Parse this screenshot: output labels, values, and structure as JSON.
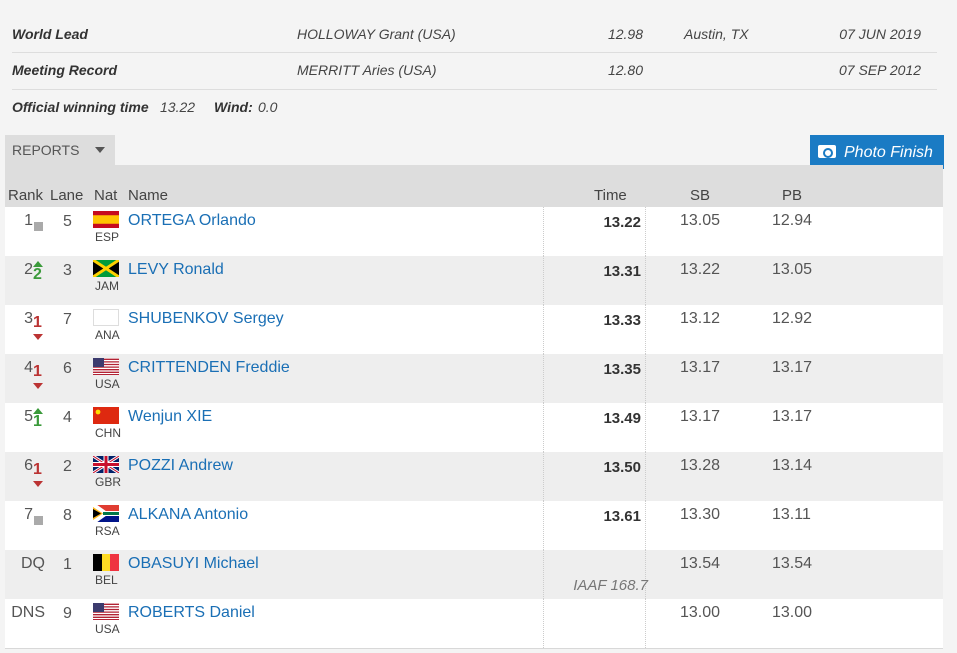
{
  "records": [
    {
      "label": "World Lead",
      "athlete": "HOLLOWAY Grant (USA)",
      "time": "12.98",
      "place": "Austin, TX",
      "date": "07 JUN 2019"
    },
    {
      "label": "Meeting Record",
      "athlete": "MERRITT Aries (USA)",
      "time": "12.80",
      "date": "07 SEP 2012"
    }
  ],
  "official": {
    "label": "Official winning time",
    "time": "13.22",
    "wind_label": "Wind:",
    "wind": "0.0"
  },
  "reports": "REPORTS",
  "photo_finish": "Photo Finish",
  "headers": {
    "rank": "Rank",
    "lane": "Lane",
    "nat": "Nat",
    "name": "Name",
    "time": "Time",
    "sb": "SB",
    "pb": "PB"
  },
  "rows": [
    {
      "rank": "1",
      "move": "same",
      "lane": "5",
      "nat": "ESP",
      "name": "ORTEGA Orlando",
      "time": "13.22",
      "sb": "13.05",
      "pb": "12.94"
    },
    {
      "rank": "2",
      "move": "up",
      "move_by": "2",
      "lane": "3",
      "nat": "JAM",
      "name": "LEVY Ronald",
      "time": "13.31",
      "sb": "13.22",
      "pb": "13.05"
    },
    {
      "rank": "3",
      "move": "down",
      "move_by": "1",
      "lane": "7",
      "nat": "ANA",
      "name": "SHUBENKOV Sergey",
      "time": "13.33",
      "sb": "13.12",
      "pb": "12.92"
    },
    {
      "rank": "4",
      "move": "down",
      "move_by": "1",
      "lane": "6",
      "nat": "USA",
      "name": "CRITTENDEN Freddie",
      "time": "13.35",
      "sb": "13.17",
      "pb": "13.17"
    },
    {
      "rank": "5",
      "move": "up",
      "move_by": "1",
      "lane": "4",
      "nat": "CHN",
      "name": "Wenjun XIE",
      "time": "13.49",
      "sb": "13.17",
      "pb": "13.17"
    },
    {
      "rank": "6",
      "move": "down",
      "move_by": "1",
      "lane": "2",
      "nat": "GBR",
      "name": "POZZI Andrew",
      "time": "13.50",
      "sb": "13.28",
      "pb": "13.14"
    },
    {
      "rank": "7",
      "move": "same",
      "lane": "8",
      "nat": "RSA",
      "name": "ALKANA Antonio",
      "time": "13.61",
      "sb": "13.30",
      "pb": "13.11"
    },
    {
      "rank": "DQ",
      "lane": "1",
      "nat": "BEL",
      "name": "OBASUYI Michael",
      "note": "IAAF 168.7",
      "sb": "13.54",
      "pb": "13.54"
    },
    {
      "rank": "DNS",
      "lane": "9",
      "nat": "USA",
      "name": "ROBERTS Daniel",
      "sb": "13.00",
      "pb": "13.00"
    }
  ]
}
